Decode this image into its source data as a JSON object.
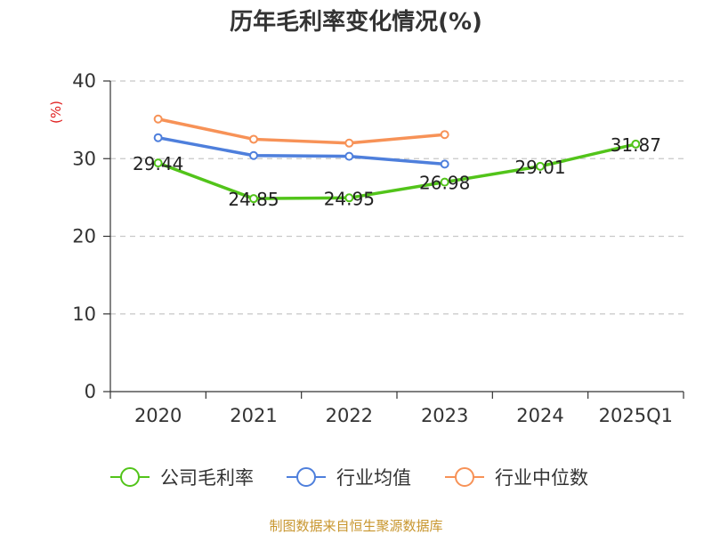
{
  "chart_data": {
    "type": "line",
    "title": "历年毛利率变化情况(%)",
    "ylabel": "(%)",
    "xlabel": "",
    "categories": [
      "2020",
      "2021",
      "2022",
      "2023",
      "2024",
      "2025Q1"
    ],
    "ylim": [
      0,
      40
    ],
    "yticks": [
      0,
      10,
      20,
      30,
      40
    ],
    "grid": true,
    "legend_position": "bottom",
    "series": [
      {
        "name": "公司毛利率",
        "color": "#52c41a",
        "values": [
          29.44,
          24.85,
          24.95,
          26.98,
          29.01,
          31.87
        ],
        "labels": [
          "29.44",
          "24.85",
          "24.95",
          "26.98",
          "29.01",
          "31.87"
        ]
      },
      {
        "name": "行业均值",
        "color": "#4e7fdc",
        "values": [
          32.7,
          30.4,
          30.3,
          29.3,
          null,
          null
        ]
      },
      {
        "name": "行业中位数",
        "color": "#f79257",
        "values": [
          35.1,
          32.5,
          32.0,
          33.1,
          null,
          null
        ]
      }
    ]
  },
  "source": "制图数据来自恒生聚源数据库"
}
